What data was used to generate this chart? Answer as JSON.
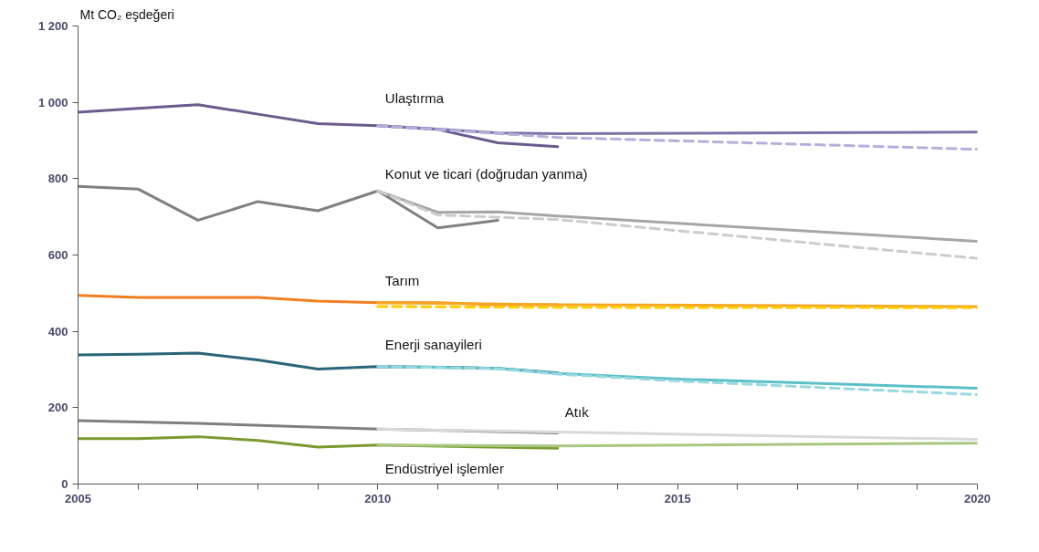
{
  "chart_data": {
    "type": "line",
    "ylabel": "Mt CO₂ eşdeğeri",
    "xlim": [
      2005,
      2020
    ],
    "ylim": [
      0,
      1200
    ],
    "xticks": [
      2005,
      {
        "value": 2006,
        "label": null
      },
      {
        "value": 2007,
        "label": null
      },
      {
        "value": 2008,
        "label": null
      },
      {
        "value": 2009,
        "label": null
      },
      2010,
      {
        "value": 2011,
        "label": null
      },
      {
        "value": 2012,
        "label": null
      },
      {
        "value": 2013,
        "label": null
      },
      {
        "value": 2014,
        "label": null
      },
      2015,
      {
        "value": 2016,
        "label": null
      },
      {
        "value": 2017,
        "label": null
      },
      {
        "value": 2018,
        "label": null
      },
      {
        "value": 2019,
        "label": null
      },
      2020
    ],
    "yticks": [
      0,
      200,
      400,
      600,
      800,
      {
        "value": 1000,
        "label": "1 000"
      },
      {
        "value": 1200,
        "label": "1 200"
      }
    ],
    "grid": false,
    "marker": "none",
    "series": [
      {
        "name": "Ulaştırma",
        "color": "#6b5b8c",
        "x": [
          2005,
          2006,
          2007,
          2008,
          2009,
          2010,
          2011,
          2012,
          2013
        ],
        "values": [
          974,
          984,
          994,
          969,
          944,
          939,
          929,
          894,
          884
        ]
      },
      {
        "color": "#7b72a8",
        "x": [
          2010,
          2011,
          2012,
          2013,
          2020
        ],
        "values": [
          939,
          930,
          920,
          918,
          922
        ]
      },
      {
        "color": "#b4b0dc",
        "line_style": "dashed",
        "x": [
          2010,
          2013,
          2020
        ],
        "values": [
          939,
          908,
          877
        ]
      },
      {
        "name": "Konut ve ticari (doğrudan yanma)",
        "color": "#808080",
        "x": [
          2005,
          2006,
          2007,
          2008,
          2009,
          2010,
          2011,
          2012
        ],
        "values": [
          780,
          773,
          691,
          740,
          716,
          768,
          671,
          691
        ]
      },
      {
        "color": "#a6a6a6",
        "x": [
          2010,
          2011,
          2012,
          2013,
          2020
        ],
        "values": [
          768,
          712,
          713,
          702,
          636
        ]
      },
      {
        "color": "#cccccc",
        "line_style": "dashed",
        "x": [
          2010,
          2011,
          2013,
          2020
        ],
        "values": [
          768,
          705,
          693,
          591
        ]
      },
      {
        "name": "Tarım",
        "color": "#f07f22",
        "x": [
          2005,
          2006,
          2007,
          2008,
          2009,
          2010,
          2011,
          2012,
          2013
        ],
        "values": [
          494,
          489,
          489,
          489,
          479,
          475,
          475,
          470,
          470
        ]
      },
      {
        "color": "#f5a623",
        "x": [
          2010,
          2013,
          2020
        ],
        "values": [
          475,
          470,
          465
        ]
      },
      {
        "color": "#ffcc00",
        "line_style": "dashed",
        "x": [
          2010,
          2013,
          2020
        ],
        "values": [
          465,
          463,
          462
        ]
      },
      {
        "name": "Enerji sanayileri",
        "color": "#2a6478",
        "x": [
          2005,
          2006,
          2007,
          2008,
          2009,
          2010,
          2011,
          2012,
          2013
        ],
        "values": [
          338,
          340,
          343,
          325,
          301,
          308,
          306,
          303,
          291
        ]
      },
      {
        "color": "#5bc0c8",
        "x": [
          2010,
          2011,
          2012,
          2013,
          2015,
          2020
        ],
        "values": [
          308,
          306,
          303,
          290,
          275,
          251
        ]
      },
      {
        "color": "#9ad8e0",
        "line_style": "dashed",
        "x": [
          2010,
          2012,
          2013,
          2015,
          2020
        ],
        "values": [
          308,
          302,
          288,
          270,
          234
        ]
      },
      {
        "name": "Atık",
        "color": "#7f7f7f",
        "x": [
          2005,
          2007,
          2009,
          2010,
          2013
        ],
        "values": [
          166,
          159,
          149,
          144,
          134
        ]
      },
      {
        "color": "#d9d9d9",
        "x": [
          2010,
          2013,
          2020
        ],
        "values": [
          144,
          136,
          117
        ]
      },
      {
        "name": "Endüstriyel işlemler",
        "color": "#7a9a30",
        "x": [
          2005,
          2006,
          2007,
          2008,
          2009,
          2010,
          2013
        ],
        "values": [
          119,
          119,
          124,
          114,
          97,
          102,
          94
        ]
      },
      {
        "color": "#a8c880",
        "x": [
          2010,
          2013,
          2020
        ],
        "values": [
          102,
          100,
          107
        ]
      }
    ]
  }
}
